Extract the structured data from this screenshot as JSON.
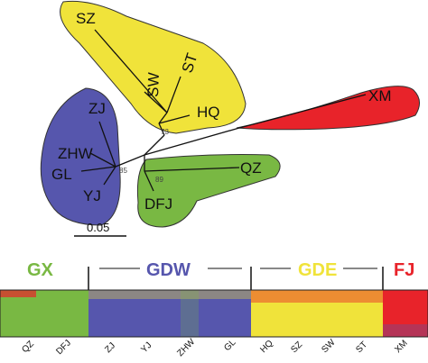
{
  "colors": {
    "yellow": "#f0e33a",
    "blue": "#5656ad",
    "red": "#e8232a",
    "green": "#79b843"
  },
  "tree": {
    "leaves": {
      "SZ": "SZ",
      "SW": "SW",
      "ST": "ST",
      "HQ": "HQ",
      "ZJ": "ZJ",
      "ZHW": "ZHW",
      "GL": "GL",
      "YJ": "YJ",
      "QZ": "QZ",
      "DFJ": "DFJ",
      "XM": "XM"
    },
    "bootstrap": {
      "yellow_node": "73",
      "blue_node": "85",
      "green_node": "89"
    },
    "scale_bar": "0.05"
  },
  "structure": {
    "groups": [
      {
        "label": "GX",
        "color": "#79b843"
      },
      {
        "label": "GDW",
        "color": "#5656ad"
      },
      {
        "label": "GDE",
        "color": "#f0e33a"
      },
      {
        "label": "FJ",
        "color": "#e8232a"
      }
    ],
    "populations": [
      "QZ",
      "DFJ",
      "ZJ",
      "YJ",
      "ZHW",
      "GL",
      "HQ",
      "SZ",
      "SW",
      "ST",
      "XM"
    ]
  }
}
